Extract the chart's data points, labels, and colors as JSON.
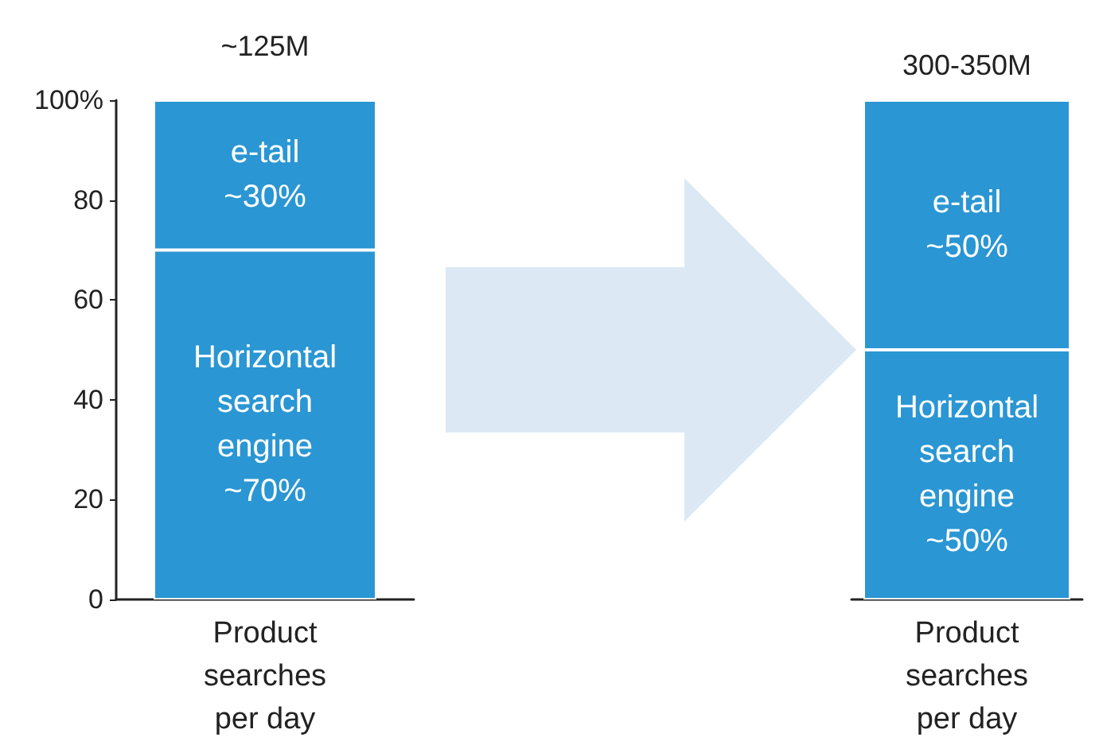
{
  "chart_data": [
    {
      "type": "bar",
      "stacked": true,
      "categories": [
        "Product\nsearches\nper day"
      ],
      "ylim": [
        0,
        100
      ],
      "yticks": [
        0,
        20,
        40,
        60,
        80,
        {
          "value": 100,
          "label": "100%"
        }
      ],
      "annotations": [
        "~125M"
      ],
      "series": [
        {
          "color": "#2a96d3",
          "values": [
            70
          ],
          "value_labels": [
            "Horizontal\nsearch\nengine\n~70%"
          ]
        },
        {
          "color": "#2a96d3",
          "values": [
            30
          ],
          "value_labels": [
            "e-tail\n~30%"
          ]
        }
      ]
    },
    {
      "type": "bar",
      "stacked": true,
      "categories": [
        "Product\nsearches\nper day"
      ],
      "ylim": [
        0,
        100
      ],
      "tick_labels": "x",
      "annotations": [
        "300-350M"
      ],
      "series": [
        {
          "color": "#2a96d3",
          "values": [
            50
          ],
          "value_labels": [
            "Horizontal\nsearch\nengine\n~50%"
          ]
        },
        {
          "color": "#2a96d3",
          "values": [
            50
          ],
          "value_labels": [
            "e-tail\n~50%"
          ]
        }
      ]
    }
  ]
}
